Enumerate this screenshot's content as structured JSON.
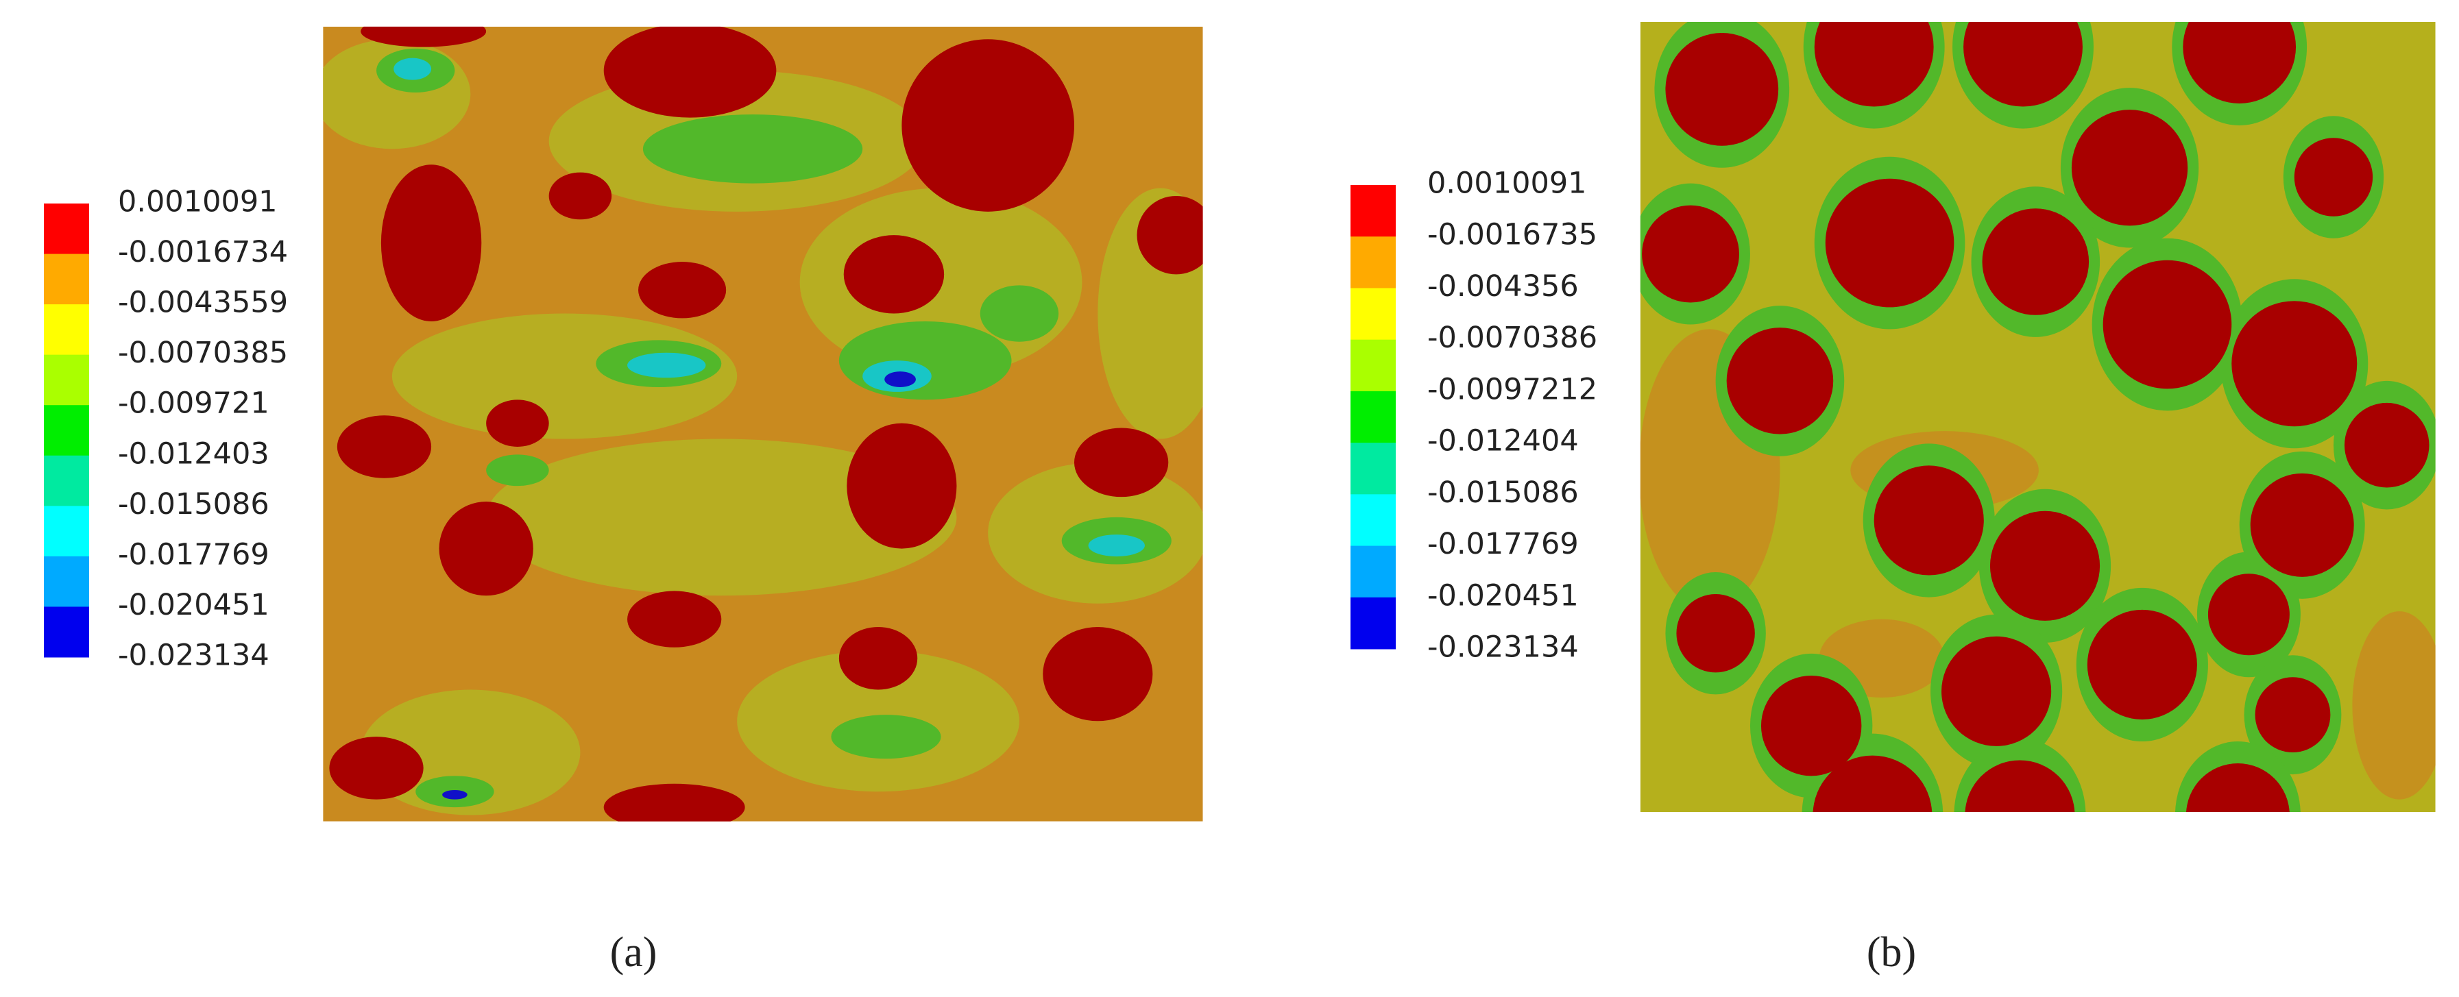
{
  "panels": [
    {
      "label": "(a)",
      "legend": [
        "0.0010091",
        "-0.0016734",
        "-0.0043559",
        "-0.0070385",
        "-0.009721",
        "-0.012403",
        "-0.015086",
        "-0.017769",
        "-0.020451",
        "-0.023134"
      ]
    },
    {
      "label": "(b)",
      "legend": [
        "0.0010091",
        "-0.0016735",
        "-0.004356",
        "-0.0070386",
        "-0.0097212",
        "-0.012404",
        "-0.015086",
        "-0.017769",
        "-0.020451",
        "-0.023134"
      ]
    }
  ],
  "legend_colors": [
    "#ff0000",
    "#ffaa00",
    "#ffff00",
    "#aaff00",
    "#00ee00",
    "#00eaa0",
    "#00ffff",
    "#00aaff",
    "#0000ee"
  ]
}
